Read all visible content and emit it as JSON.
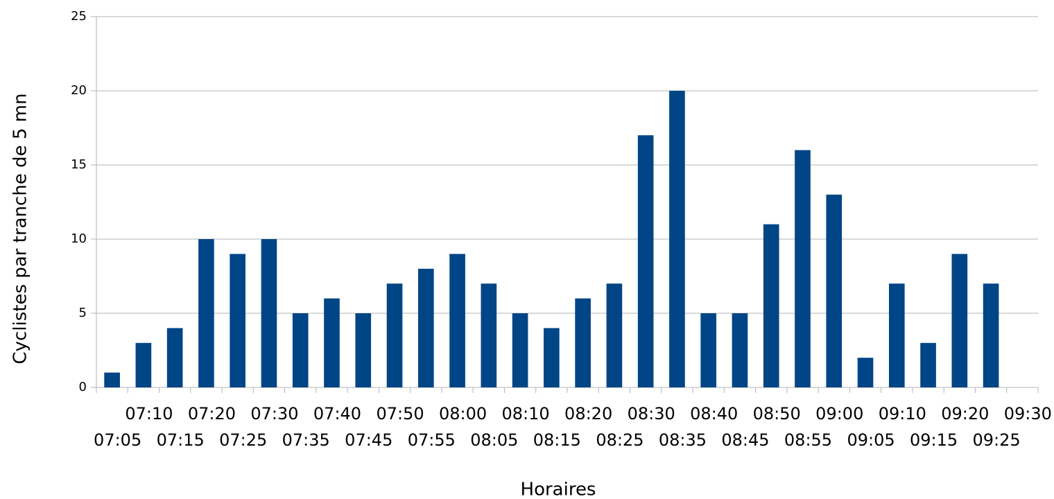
{
  "chart_data": {
    "type": "bar",
    "x_label": "Horaires",
    "y_label": "Cyclistes par tranche de 5 mn",
    "categories": [
      "07:05",
      "07:10",
      "07:15",
      "07:20",
      "07:25",
      "07:30",
      "07:35",
      "07:40",
      "07:45",
      "07:50",
      "07:55",
      "08:00",
      "08:05",
      "08:10",
      "08:15",
      "08:20",
      "08:25",
      "08:30",
      "08:35",
      "08:40",
      "08:45",
      "08:50",
      "08:55",
      "09:00",
      "09:05",
      "09:10",
      "09:15",
      "09:20",
      "09:25",
      "09:30"
    ],
    "values": [
      1,
      3,
      4,
      10,
      9,
      10,
      5,
      6,
      5,
      7,
      8,
      9,
      7,
      5,
      4,
      6,
      7,
      17,
      20,
      5,
      5,
      11,
      16,
      13,
      2,
      7,
      3,
      9,
      7,
      null
    ],
    "color": "#004586",
    "ylim": [
      0,
      25
    ],
    "yticks": [
      0,
      5,
      10,
      15,
      20,
      25
    ],
    "grid": true
  }
}
